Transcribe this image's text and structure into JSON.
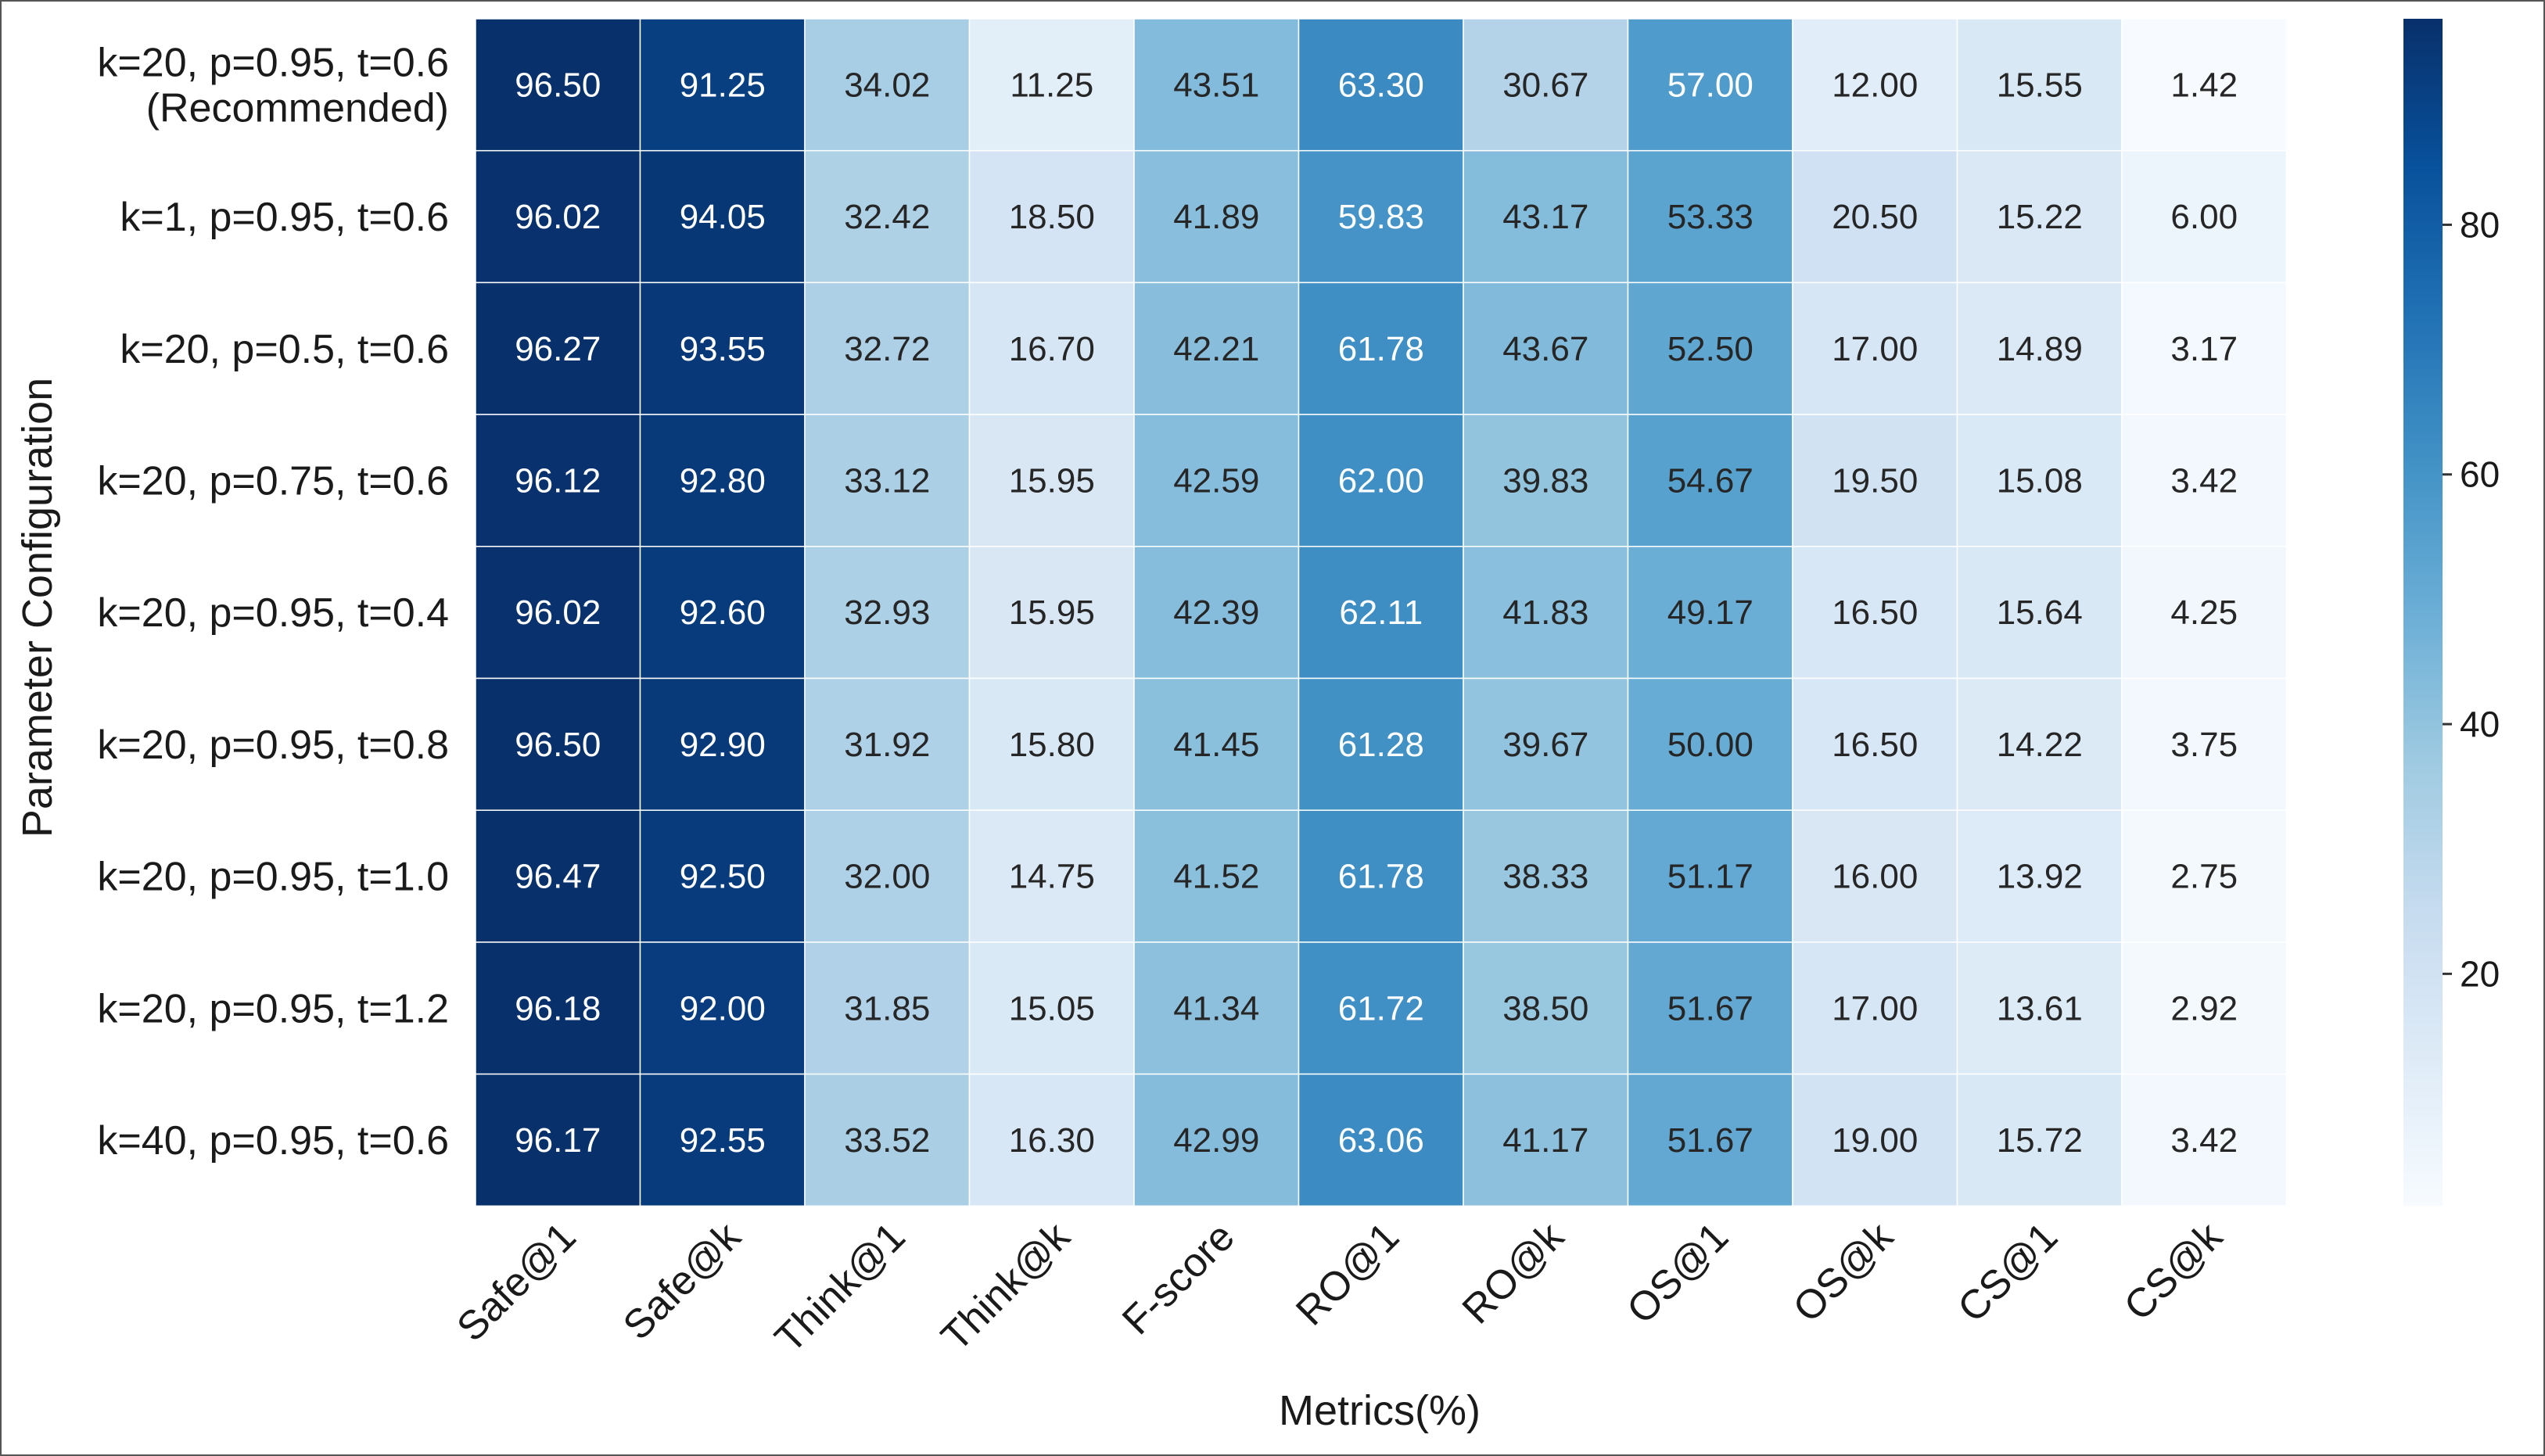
{
  "chart_data": {
    "type": "heatmap",
    "xlabel": "Metrics(%)",
    "ylabel": "Parameter Configuration",
    "columns": [
      "Safe@1",
      "Safe@k",
      "Think@1",
      "Think@k",
      "F-score",
      "RO@1",
      "RO@k",
      "OS@1",
      "OS@k",
      "CS@1",
      "CS@k"
    ],
    "rows": [
      "k=20, p=0.95, t=0.6\n(Recommended)",
      "k=1, p=0.95, t=0.6",
      "k=20, p=0.5, t=0.6",
      "k=20, p=0.75, t=0.6",
      "k=20, p=0.95, t=0.4",
      "k=20, p=0.95, t=0.8",
      "k=20, p=0.95, t=1.0",
      "k=20, p=0.95, t=1.2",
      "k=40, p=0.95, t=0.6"
    ],
    "values": [
      [
        96.5,
        91.25,
        34.02,
        11.25,
        43.51,
        63.3,
        30.67,
        57.0,
        12.0,
        15.55,
        1.42
      ],
      [
        96.02,
        94.05,
        32.42,
        18.5,
        41.89,
        59.83,
        43.17,
        53.33,
        20.5,
        15.22,
        6.0
      ],
      [
        96.27,
        93.55,
        32.72,
        16.7,
        42.21,
        61.78,
        43.67,
        52.5,
        17.0,
        14.89,
        3.17
      ],
      [
        96.12,
        92.8,
        33.12,
        15.95,
        42.59,
        62.0,
        39.83,
        54.67,
        19.5,
        15.08,
        3.42
      ],
      [
        96.02,
        92.6,
        32.93,
        15.95,
        42.39,
        62.11,
        41.83,
        49.17,
        16.5,
        15.64,
        4.25
      ],
      [
        96.5,
        92.9,
        31.92,
        15.8,
        41.45,
        61.28,
        39.67,
        50.0,
        16.5,
        14.22,
        3.75
      ],
      [
        96.47,
        92.5,
        32.0,
        14.75,
        41.52,
        61.78,
        38.33,
        51.17,
        16.0,
        13.92,
        2.75
      ],
      [
        96.18,
        92.0,
        31.85,
        15.05,
        41.34,
        61.72,
        38.5,
        51.67,
        17.0,
        13.61,
        2.92
      ],
      [
        96.17,
        92.55,
        33.52,
        16.3,
        42.99,
        63.06,
        41.17,
        51.67,
        19.0,
        15.72,
        3.42
      ]
    ],
    "colorbar": {
      "colormap": "Blues",
      "ticks": [
        20,
        40,
        60,
        80
      ],
      "range": [
        1.42,
        96.5
      ]
    },
    "grid": false,
    "legend": "colorbar-right"
  }
}
